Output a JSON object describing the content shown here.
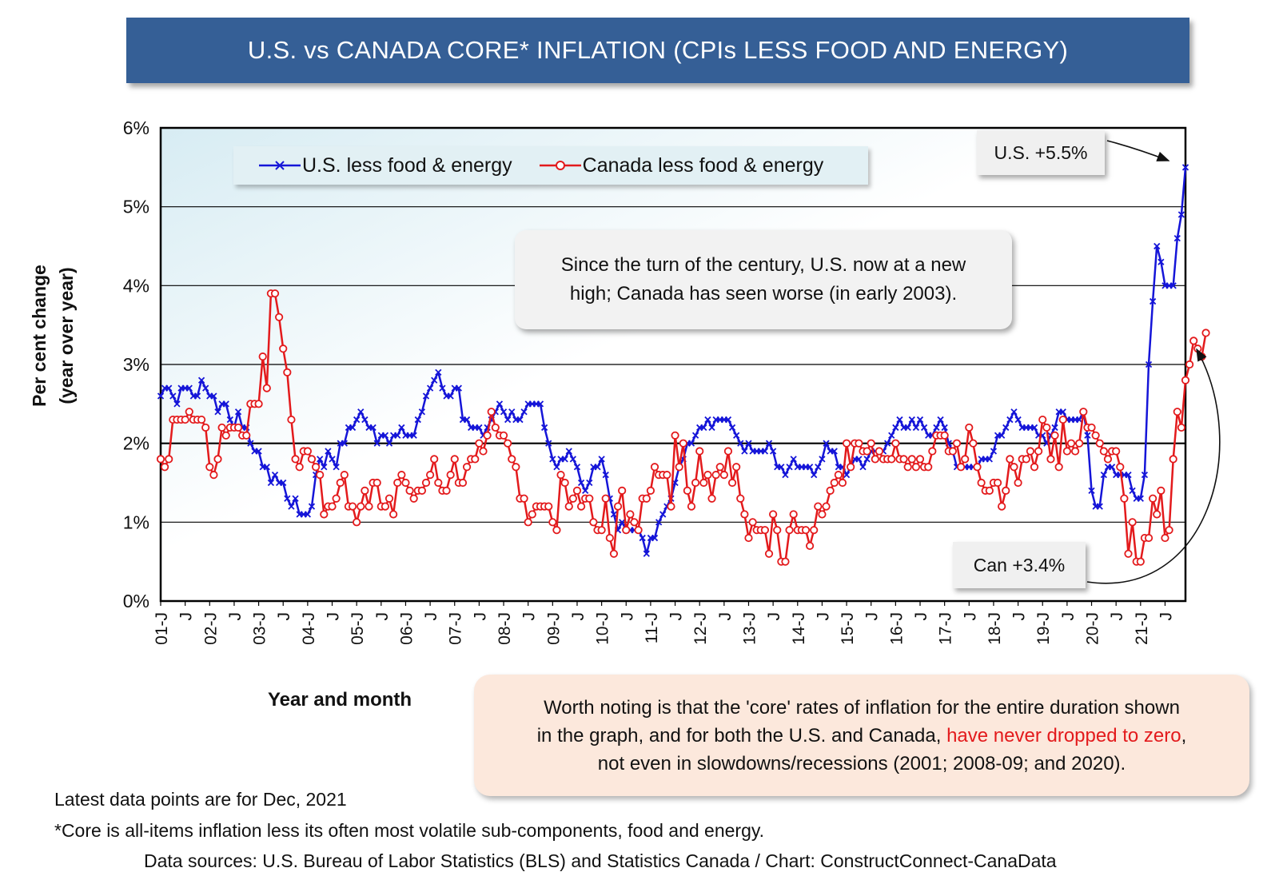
{
  "title": "U.S. vs CANADA CORE* INFLATION (CPIs LESS FOOD AND ENERGY)",
  "colors": {
    "us": "#1515d8",
    "canada": "#e31a1c",
    "title_bg": "#355f96"
  },
  "legend": {
    "us": "U.S. less food & energy",
    "canada": "Canada less food & energy"
  },
  "callouts": {
    "us": "U.S. +5.5%",
    "canada": "Can +3.4%"
  },
  "note": {
    "line1": "Since the turn of the century, U.S. now at a new",
    "line2": "high; Canada has seen worse (in early 2003)."
  },
  "worth": {
    "line1": "Worth noting is that the 'core' rates of inflation for the entire duration shown",
    "line2a": "in the graph, and for both the U.S. and Canada, ",
    "line2b": "have never dropped to zero",
    "line2c": ",",
    "line3": "not even in slowdowns/recessions (2001; 2008-09; and 2020)."
  },
  "footer": {
    "latest": "Latest data points are for Dec, 2021",
    "core_note": "*Core is all-items inflation less its often most volatile sub-components, food and energy.",
    "sources": "Data sources: U.S. Bureau of Labor Statistics (BLS) and Statistics Canada / Chart: ConstructConnect-CanaData"
  },
  "chart_data": {
    "type": "line",
    "ylabel_line1": "Per cent change",
    "ylabel_line2": "(year over year)",
    "xlabel": "Year and month",
    "ylim": [
      0,
      6
    ],
    "yticks": [
      "0%",
      "1%",
      "2%",
      "3%",
      "4%",
      "5%",
      "6%"
    ],
    "x_tick_labels": [
      "01-J",
      "J",
      "02-J",
      "J",
      "03-J",
      "J",
      "04-J",
      "J",
      "05-J",
      "J",
      "06-J",
      "J",
      "07-J",
      "J",
      "08-J",
      "J",
      "09-J",
      "J",
      "10-J",
      "J",
      "11-J",
      "J",
      "12-J",
      "J",
      "13-J",
      "J",
      "14-J",
      "J",
      "15-J",
      "J",
      "16-J",
      "J",
      "17-J",
      "J",
      "18-J",
      "J",
      "19-J",
      "J",
      "20-J",
      "J",
      "21-J",
      "J"
    ],
    "x_start": "2001-01",
    "x_end": "2021-12",
    "grid": "horizontal",
    "legend_position": "top-left",
    "series": [
      {
        "name": "U.S. less food & energy",
        "values": [
          2.6,
          2.7,
          2.7,
          2.6,
          2.5,
          2.7,
          2.7,
          2.7,
          2.6,
          2.6,
          2.8,
          2.7,
          2.6,
          2.6,
          2.4,
          2.5,
          2.5,
          2.3,
          2.2,
          2.4,
          2.2,
          2.2,
          2.0,
          1.9,
          1.9,
          1.7,
          1.7,
          1.5,
          1.6,
          1.5,
          1.5,
          1.3,
          1.2,
          1.3,
          1.1,
          1.1,
          1.1,
          1.2,
          1.6,
          1.8,
          1.7,
          1.9,
          1.8,
          1.7,
          2.0,
          2.0,
          2.2,
          2.2,
          2.3,
          2.4,
          2.3,
          2.2,
          2.2,
          2.0,
          2.1,
          2.1,
          2.0,
          2.1,
          2.1,
          2.2,
          2.1,
          2.1,
          2.1,
          2.3,
          2.4,
          2.6,
          2.7,
          2.8,
          2.9,
          2.7,
          2.6,
          2.6,
          2.7,
          2.7,
          2.3,
          2.3,
          2.2,
          2.2,
          2.2,
          2.1,
          2.2,
          2.3,
          2.4,
          2.5,
          2.4,
          2.3,
          2.4,
          2.3,
          2.3,
          2.4,
          2.5,
          2.5,
          2.5,
          2.5,
          2.2,
          2.0,
          1.8,
          1.7,
          1.8,
          1.8,
          1.9,
          1.8,
          1.7,
          1.5,
          1.4,
          1.5,
          1.7,
          1.7,
          1.8,
          1.6,
          1.3,
          1.1,
          0.9,
          1.0,
          0.9,
          0.9,
          0.9,
          0.9,
          0.8,
          0.6,
          0.8,
          0.8,
          1.0,
          1.1,
          1.2,
          1.3,
          1.5,
          1.7,
          1.8,
          2.0,
          2.0,
          2.1,
          2.2,
          2.2,
          2.3,
          2.2,
          2.3,
          2.3,
          2.3,
          2.3,
          2.2,
          2.1,
          2.0,
          1.9,
          2.0,
          1.9,
          1.9,
          1.9,
          1.9,
          2.0,
          1.9,
          1.7,
          1.7,
          1.6,
          1.7,
          1.8,
          1.7,
          1.7,
          1.7,
          1.7,
          1.6,
          1.7,
          1.8,
          2.0,
          1.9,
          1.9,
          1.7,
          1.7,
          1.6,
          1.7,
          1.8,
          1.8,
          1.7,
          1.8,
          1.9,
          1.9,
          1.9,
          1.9,
          2.0,
          2.1,
          2.2,
          2.3,
          2.2,
          2.2,
          2.3,
          2.2,
          2.3,
          2.2,
          2.1,
          2.1,
          2.2,
          2.3,
          2.2,
          2.0,
          1.9,
          1.7,
          1.7,
          1.7,
          1.7,
          1.7,
          1.7,
          1.8,
          1.8,
          1.8,
          1.9,
          2.1,
          2.1,
          2.2,
          2.3,
          2.4,
          2.3,
          2.2,
          2.2,
          2.2,
          2.2,
          2.1,
          2.1,
          2.0,
          2.1,
          2.2,
          2.4,
          2.4,
          2.3,
          2.3,
          2.3,
          2.3,
          2.4,
          2.1,
          1.4,
          1.2,
          1.2,
          1.6,
          1.7,
          1.7,
          1.6,
          1.6,
          1.6,
          1.6,
          1.4,
          1.3,
          1.3,
          1.6,
          3.0,
          3.8,
          4.5,
          4.3,
          4.0,
          4.0,
          4.0,
          4.6,
          4.9,
          5.5
        ]
      },
      {
        "name": "Canada less food & energy",
        "values": [
          1.8,
          1.7,
          1.8,
          2.3,
          2.3,
          2.3,
          2.3,
          2.4,
          2.3,
          2.3,
          2.3,
          2.2,
          1.7,
          1.6,
          1.8,
          2.2,
          2.1,
          2.2,
          2.2,
          2.2,
          2.1,
          2.1,
          2.5,
          2.5,
          2.5,
          3.1,
          2.7,
          3.9,
          3.9,
          3.6,
          3.2,
          2.9,
          2.3,
          1.8,
          1.7,
          1.9,
          1.9,
          1.8,
          1.7,
          1.6,
          1.1,
          1.2,
          1.2,
          1.3,
          1.5,
          1.6,
          1.2,
          1.2,
          1.0,
          1.2,
          1.4,
          1.2,
          1.5,
          1.5,
          1.2,
          1.2,
          1.3,
          1.1,
          1.5,
          1.6,
          1.5,
          1.4,
          1.3,
          1.4,
          1.4,
          1.5,
          1.6,
          1.8,
          1.5,
          1.4,
          1.4,
          1.6,
          1.8,
          1.5,
          1.5,
          1.7,
          1.8,
          1.8,
          2.0,
          1.9,
          2.1,
          2.4,
          2.2,
          2.1,
          2.1,
          2.0,
          1.8,
          1.7,
          1.3,
          1.3,
          1.0,
          1.1,
          1.2,
          1.2,
          1.2,
          1.2,
          1.0,
          0.9,
          1.6,
          1.5,
          1.2,
          1.3,
          1.4,
          1.2,
          1.3,
          1.3,
          1.0,
          0.9,
          0.9,
          1.3,
          0.8,
          0.6,
          1.2,
          1.4,
          0.9,
          1.1,
          1.0,
          0.9,
          1.3,
          1.3,
          1.4,
          1.7,
          1.6,
          1.6,
          1.6,
          1.2,
          2.1,
          1.7,
          2.0,
          1.4,
          1.2,
          1.5,
          1.9,
          1.5,
          1.6,
          1.3,
          1.6,
          1.7,
          1.6,
          1.9,
          1.5,
          1.7,
          1.3,
          1.1,
          0.8,
          1.0,
          0.9,
          0.9,
          0.9,
          0.6,
          1.1,
          0.9,
          0.5,
          0.5,
          0.9,
          1.1,
          0.9,
          0.9,
          0.9,
          0.7,
          0.9,
          1.2,
          1.1,
          1.2,
          1.4,
          1.5,
          1.6,
          1.5,
          2.0,
          1.7,
          2.0,
          2.0,
          1.9,
          1.9,
          2.0,
          1.8,
          1.9,
          1.8,
          1.8,
          1.8,
          2.0,
          1.8,
          1.8,
          1.7,
          1.8,
          1.7,
          1.8,
          1.7,
          1.7,
          1.9,
          2.1,
          2.1,
          2.1,
          1.9,
          1.9,
          2.0,
          1.7,
          1.8,
          2.2,
          2.0,
          1.7,
          1.5,
          1.4,
          1.4,
          1.5,
          1.5,
          1.2,
          1.4,
          1.8,
          1.7,
          1.5,
          1.8,
          1.8,
          1.9,
          1.7,
          1.9,
          2.3,
          2.2,
          1.8,
          2.1,
          1.7,
          2.3,
          1.9,
          2.0,
          1.9,
          2.0,
          2.4,
          2.2,
          2.2,
          2.1,
          2.0,
          1.9,
          1.8,
          1.9,
          1.9,
          1.7,
          1.3,
          0.6,
          1.0,
          0.5,
          0.5,
          0.8,
          0.8,
          1.3,
          1.1,
          1.4,
          0.8,
          0.9,
          1.8,
          2.4,
          2.2,
          2.8,
          3.0,
          3.3,
          3.2,
          3.1,
          3.4
        ]
      }
    ]
  }
}
